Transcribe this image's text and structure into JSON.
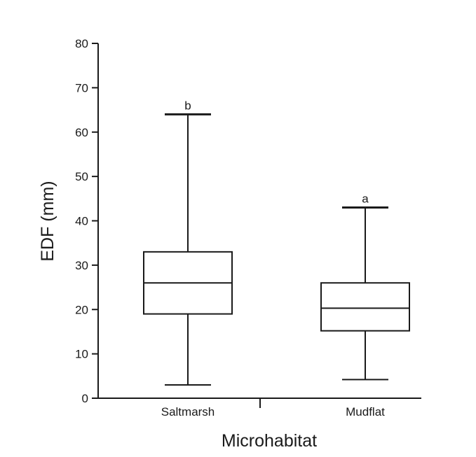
{
  "chart_data": {
    "type": "box",
    "title": "",
    "xlabel": "Microhabitat",
    "ylabel": "EDF (mm)",
    "ylim": [
      0,
      80
    ],
    "yticks": [
      0,
      10,
      20,
      30,
      40,
      50,
      60,
      70,
      80
    ],
    "grid": false,
    "categories": [
      "Saltmarsh",
      "Mudflat"
    ],
    "boxes": [
      {
        "category": "Saltmarsh",
        "min": 3,
        "q1": 19,
        "median": 26,
        "q3": 33,
        "max": 64,
        "letter": "b"
      },
      {
        "category": "Mudflat",
        "min": 4.2,
        "q1": 15.2,
        "median": 20.3,
        "q3": 26,
        "max": 43,
        "letter": "a"
      }
    ],
    "colors": {
      "axis": "#1a1a1a",
      "box_fill": "#ffffff",
      "box_stroke": "#1a1a1a"
    }
  }
}
